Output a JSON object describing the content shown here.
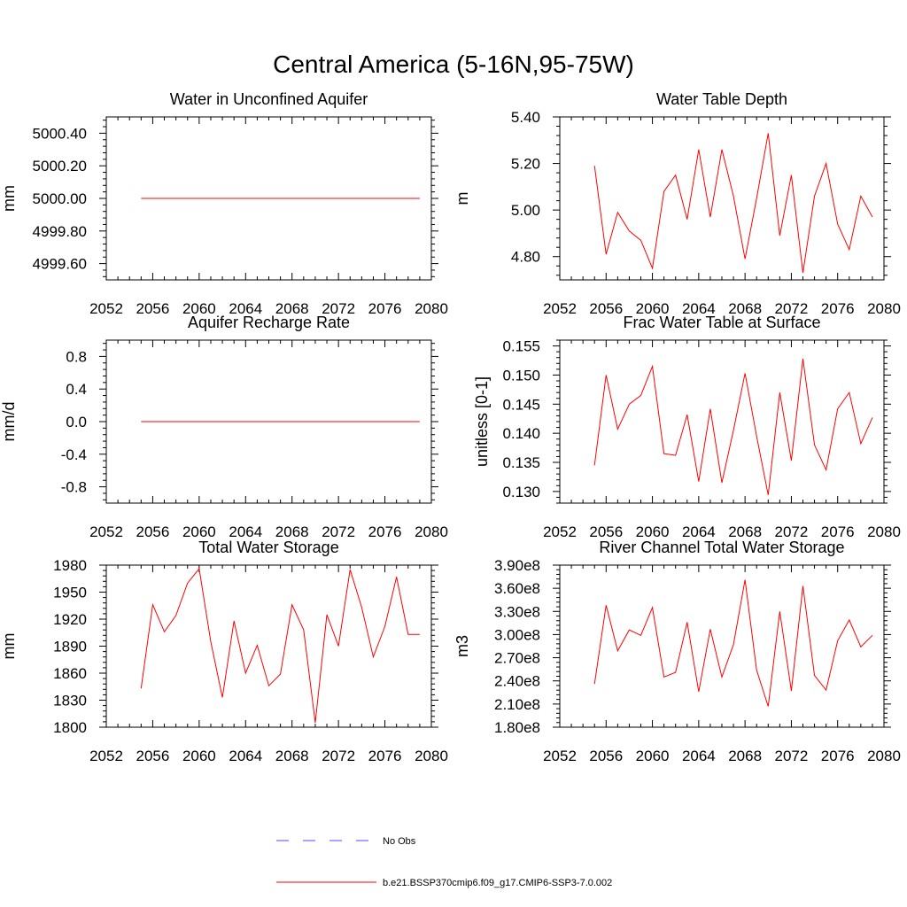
{
  "figure": {
    "title": "Central America (5-16N,95-75W)"
  },
  "chart_data": [
    {
      "type": "line",
      "title": "Water in Unconfined Aquifer",
      "xlabel": "",
      "ylabel": "mm",
      "xlim": [
        2052,
        2080
      ],
      "ylim": [
        4999.5,
        5000.5
      ],
      "xticks": [
        2052,
        2056,
        2060,
        2064,
        2068,
        2072,
        2076,
        2080
      ],
      "yticks": [
        4999.6,
        4999.8,
        5000.0,
        5000.2,
        5000.4
      ],
      "ytick_labels": [
        "4999.60",
        "4999.80",
        "5000.00",
        "5000.20",
        "5000.40"
      ],
      "x": [
        2055,
        2056,
        2057,
        2058,
        2059,
        2060,
        2061,
        2062,
        2063,
        2064,
        2065,
        2066,
        2067,
        2068,
        2069,
        2070,
        2071,
        2072,
        2073,
        2074,
        2075,
        2076,
        2077,
        2078,
        2079
      ],
      "series": [
        {
          "color": "#ff0000",
          "values": [
            5000,
            5000,
            5000,
            5000,
            5000,
            5000,
            5000,
            5000,
            5000,
            5000,
            5000,
            5000,
            5000,
            5000,
            5000,
            5000,
            5000,
            5000,
            5000,
            5000,
            5000,
            5000,
            5000,
            5000,
            5000
          ]
        }
      ]
    },
    {
      "type": "line",
      "title": "Water Table Depth",
      "xlabel": "",
      "ylabel": "m",
      "xlim": [
        2052,
        2080
      ],
      "ylim": [
        4.7,
        5.4
      ],
      "xticks": [
        2052,
        2056,
        2060,
        2064,
        2068,
        2072,
        2076,
        2080
      ],
      "yticks": [
        4.8,
        5.0,
        5.2,
        5.4
      ],
      "ytick_labels": [
        "4.80",
        "5.00",
        "5.20",
        "5.40"
      ],
      "x": [
        2055,
        2056,
        2057,
        2058,
        2059,
        2060,
        2061,
        2062,
        2063,
        2064,
        2065,
        2066,
        2067,
        2068,
        2069,
        2070,
        2071,
        2072,
        2073,
        2074,
        2075,
        2076,
        2077,
        2078,
        2079
      ],
      "series": [
        {
          "color": "#ff0000",
          "values": [
            5.19,
            4.81,
            4.99,
            4.91,
            4.87,
            4.75,
            5.08,
            5.15,
            4.96,
            5.26,
            4.97,
            5.26,
            5.06,
            4.79,
            5.05,
            5.33,
            4.89,
            5.15,
            4.73,
            5.06,
            5.2,
            4.94,
            4.83,
            5.06,
            4.97
          ]
        }
      ]
    },
    {
      "type": "line",
      "title": "Aquifer Recharge Rate",
      "xlabel": "",
      "ylabel": "mm/d",
      "xlim": [
        2052,
        2080
      ],
      "ylim": [
        -1.0,
        1.0
      ],
      "xticks": [
        2052,
        2056,
        2060,
        2064,
        2068,
        2072,
        2076,
        2080
      ],
      "yticks": [
        -0.8,
        -0.4,
        0.0,
        0.4,
        0.8
      ],
      "ytick_labels": [
        "-0.8",
        "-0.4",
        "0.0",
        "0.4",
        "0.8"
      ],
      "x": [
        2055,
        2056,
        2057,
        2058,
        2059,
        2060,
        2061,
        2062,
        2063,
        2064,
        2065,
        2066,
        2067,
        2068,
        2069,
        2070,
        2071,
        2072,
        2073,
        2074,
        2075,
        2076,
        2077,
        2078,
        2079
      ],
      "series": [
        {
          "color": "#ff0000",
          "values": [
            0,
            0,
            0,
            0,
            0,
            0,
            0,
            0,
            0,
            0,
            0,
            0,
            0,
            0,
            0,
            0,
            0,
            0,
            0,
            0,
            0,
            0,
            0,
            0,
            0
          ]
        }
      ]
    },
    {
      "type": "line",
      "title": "Frac Water Table at Surface",
      "xlabel": "",
      "ylabel": "unitless [0-1]",
      "xlim": [
        2052,
        2080
      ],
      "ylim": [
        0.128,
        0.156
      ],
      "xticks": [
        2052,
        2056,
        2060,
        2064,
        2068,
        2072,
        2076,
        2080
      ],
      "yticks": [
        0.13,
        0.135,
        0.14,
        0.145,
        0.15,
        0.155
      ],
      "ytick_labels": [
        "0.130",
        "0.135",
        "0.140",
        "0.145",
        "0.150",
        "0.155"
      ],
      "x": [
        2055,
        2056,
        2057,
        2058,
        2059,
        2060,
        2061,
        2062,
        2063,
        2064,
        2065,
        2066,
        2067,
        2068,
        2069,
        2070,
        2071,
        2072,
        2073,
        2074,
        2075,
        2076,
        2077,
        2078,
        2079
      ],
      "series": [
        {
          "color": "#ff0000",
          "values": [
            0.1345,
            0.15,
            0.1407,
            0.145,
            0.1465,
            0.1515,
            0.1365,
            0.1362,
            0.1432,
            0.1317,
            0.1442,
            0.1315,
            0.1405,
            0.1503,
            0.1395,
            0.1294,
            0.147,
            0.1353,
            0.1528,
            0.138,
            0.1337,
            0.1442,
            0.147,
            0.1382,
            0.1427
          ]
        }
      ]
    },
    {
      "type": "line",
      "title": "Total Water Storage",
      "xlabel": "",
      "ylabel": "mm",
      "xlim": [
        2052,
        2080
      ],
      "ylim": [
        1800,
        1980
      ],
      "xticks": [
        2052,
        2056,
        2060,
        2064,
        2068,
        2072,
        2076,
        2080
      ],
      "yticks": [
        1800,
        1830,
        1860,
        1890,
        1920,
        1950,
        1980
      ],
      "ytick_labels": [
        "1800",
        "1830",
        "1860",
        "1890",
        "1920",
        "1950",
        "1980"
      ],
      "x": [
        2055,
        2056,
        2057,
        2058,
        2059,
        2060,
        2061,
        2062,
        2063,
        2064,
        2065,
        2066,
        2067,
        2068,
        2069,
        2070,
        2071,
        2072,
        2073,
        2074,
        2075,
        2076,
        2077,
        2078,
        2079
      ],
      "series": [
        {
          "color": "#ff0000",
          "values": [
            1843,
            1936,
            1906,
            1924,
            1960,
            1976,
            1895,
            1833,
            1918,
            1860,
            1891,
            1846,
            1859,
            1936,
            1908,
            1805,
            1925,
            1890,
            1975,
            1933,
            1878,
            1912,
            1967,
            1903,
            1903
          ]
        }
      ]
    },
    {
      "type": "line",
      "title": "River Channel Total Water Storage",
      "xlabel": "",
      "ylabel": "m3",
      "xlim": [
        2052,
        2080
      ],
      "ylim": [
        180000000,
        390000000
      ],
      "xticks": [
        2052,
        2056,
        2060,
        2064,
        2068,
        2072,
        2076,
        2080
      ],
      "yticks": [
        180000000,
        210000000,
        240000000,
        270000000,
        300000000,
        330000000,
        360000000,
        390000000
      ],
      "ytick_labels": [
        "1.80e8",
        "2.10e8",
        "2.40e8",
        "2.70e8",
        "3.00e8",
        "3.30e8",
        "3.60e8",
        "3.90e8"
      ],
      "x": [
        2055,
        2056,
        2057,
        2058,
        2059,
        2060,
        2061,
        2062,
        2063,
        2064,
        2065,
        2066,
        2067,
        2068,
        2069,
        2070,
        2071,
        2072,
        2073,
        2074,
        2075,
        2076,
        2077,
        2078,
        2079
      ],
      "series": [
        {
          "color": "#ff0000",
          "values": [
            236000000,
            338000000,
            279000000,
            306000000,
            299000000,
            335000000,
            245000000,
            251000000,
            316000000,
            226000000,
            307000000,
            245000000,
            287000000,
            371000000,
            254000000,
            207000000,
            330000000,
            227000000,
            363000000,
            247000000,
            228000000,
            292000000,
            319000000,
            284000000,
            299000000
          ]
        }
      ]
    }
  ],
  "legend": [
    {
      "label": "No Obs",
      "color": "#4d4dff",
      "style": "dashed"
    },
    {
      "label": "b.e21.BSSP370cmip6.f09_g17.CMIP6-SSP3-7.0.002",
      "color": "#ff0000",
      "style": "solid"
    }
  ]
}
